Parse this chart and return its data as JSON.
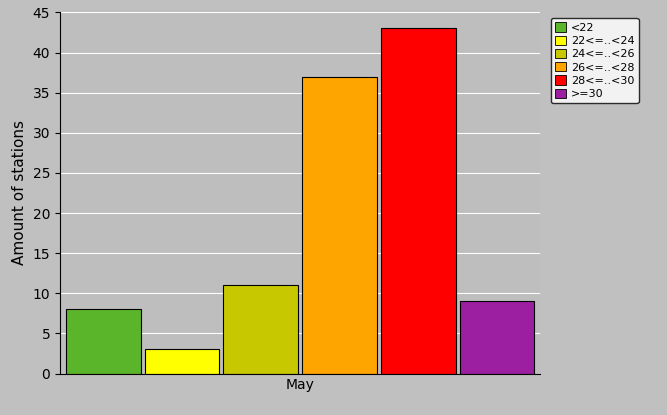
{
  "xlabel": "May",
  "ylabel": "Amount of stations",
  "ylim": [
    0,
    45
  ],
  "yticks": [
    0,
    5,
    10,
    15,
    20,
    25,
    30,
    35,
    40,
    45
  ],
  "background_color": "#c0c0c0",
  "plot_bg_color": "#bebebe",
  "bar_data": [
    {
      "label": "<22",
      "value": 8,
      "color": "#5ab52a"
    },
    {
      "label": "22<=..<24",
      "value": 3,
      "color": "#ffff00"
    },
    {
      "label": "24<=..<26",
      "value": 11,
      "color": "#c8c800"
    },
    {
      "label": "26<=..<28",
      "value": 37,
      "color": "#ffa500"
    },
    {
      "label": "28<=..<30",
      "value": 43,
      "color": "#ff0000"
    },
    {
      "label": ">=30",
      "value": 9,
      "color": "#9b1fa0"
    }
  ],
  "legend_labels": [
    "<22",
    "22<=..<24",
    "24<=..<26",
    "26<=..<28",
    "28<=..<30",
    ">=30"
  ],
  "legend_colors": [
    "#5ab52a",
    "#ffff00",
    "#c8c800",
    "#ffa500",
    "#ff0000",
    "#9b1fa0"
  ],
  "bar_edge_color": "#000000",
  "grid_color": "#ffffff",
  "tick_label_fontsize": 10,
  "axis_label_fontsize": 11,
  "legend_fontsize": 8,
  "figsize": [
    6.67,
    4.15
  ],
  "dpi": 100
}
